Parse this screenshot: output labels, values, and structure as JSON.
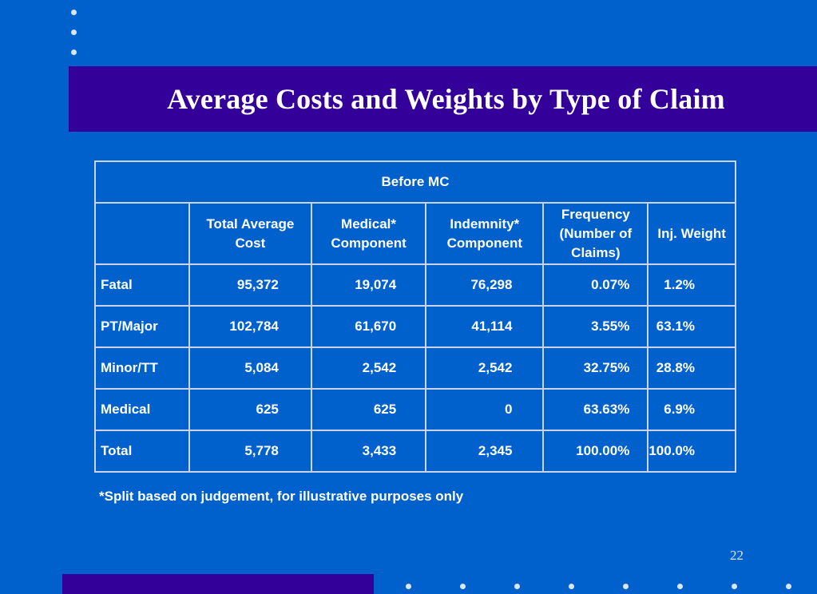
{
  "slide": {
    "title": "Average Costs and Weights by Type of Claim",
    "page_number": "22",
    "footnote": "*Split based on judgement, for illustrative purposes only"
  },
  "table": {
    "band_header": "Before MC",
    "columns": [
      "",
      "Total Average Cost",
      "Medical* Component",
      "Indemnity* Component",
      "Frequency (Number of Claims)",
      "Inj. Weight"
    ],
    "rows": [
      {
        "label": "Fatal",
        "total": "95,372",
        "medical": "19,074",
        "indemnity": "76,298",
        "frequency": "0.07%",
        "weight": "1.2%"
      },
      {
        "label": "PT/Major",
        "total": "102,784",
        "medical": "61,670",
        "indemnity": "41,114",
        "frequency": "3.55%",
        "weight": "63.1%"
      },
      {
        "label": "Minor/TT",
        "total": "5,084",
        "medical": "2,542",
        "indemnity": "2,542",
        "frequency": "32.75%",
        "weight": "28.8%"
      },
      {
        "label": "Medical",
        "total": "625",
        "medical": "625",
        "indemnity": "0",
        "frequency": "63.63%",
        "weight": "6.9%"
      },
      {
        "label": "Total",
        "total": "5,778",
        "medical": "3,433",
        "indemnity": "2,345",
        "frequency": "100.00%",
        "weight": "100.0%"
      }
    ]
  }
}
